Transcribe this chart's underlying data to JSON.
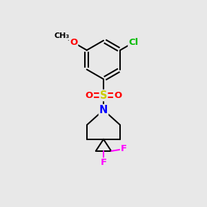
{
  "bg_color": "#e8e8e8",
  "bond_color": "#000000",
  "bond_width": 1.5,
  "atom_colors": {
    "O": "#ff0000",
    "S": "#cccc00",
    "N": "#0000ff",
    "F": "#ff00ff",
    "Cl": "#00bb00",
    "C": "#000000"
  },
  "font_size_atoms": 9.5
}
